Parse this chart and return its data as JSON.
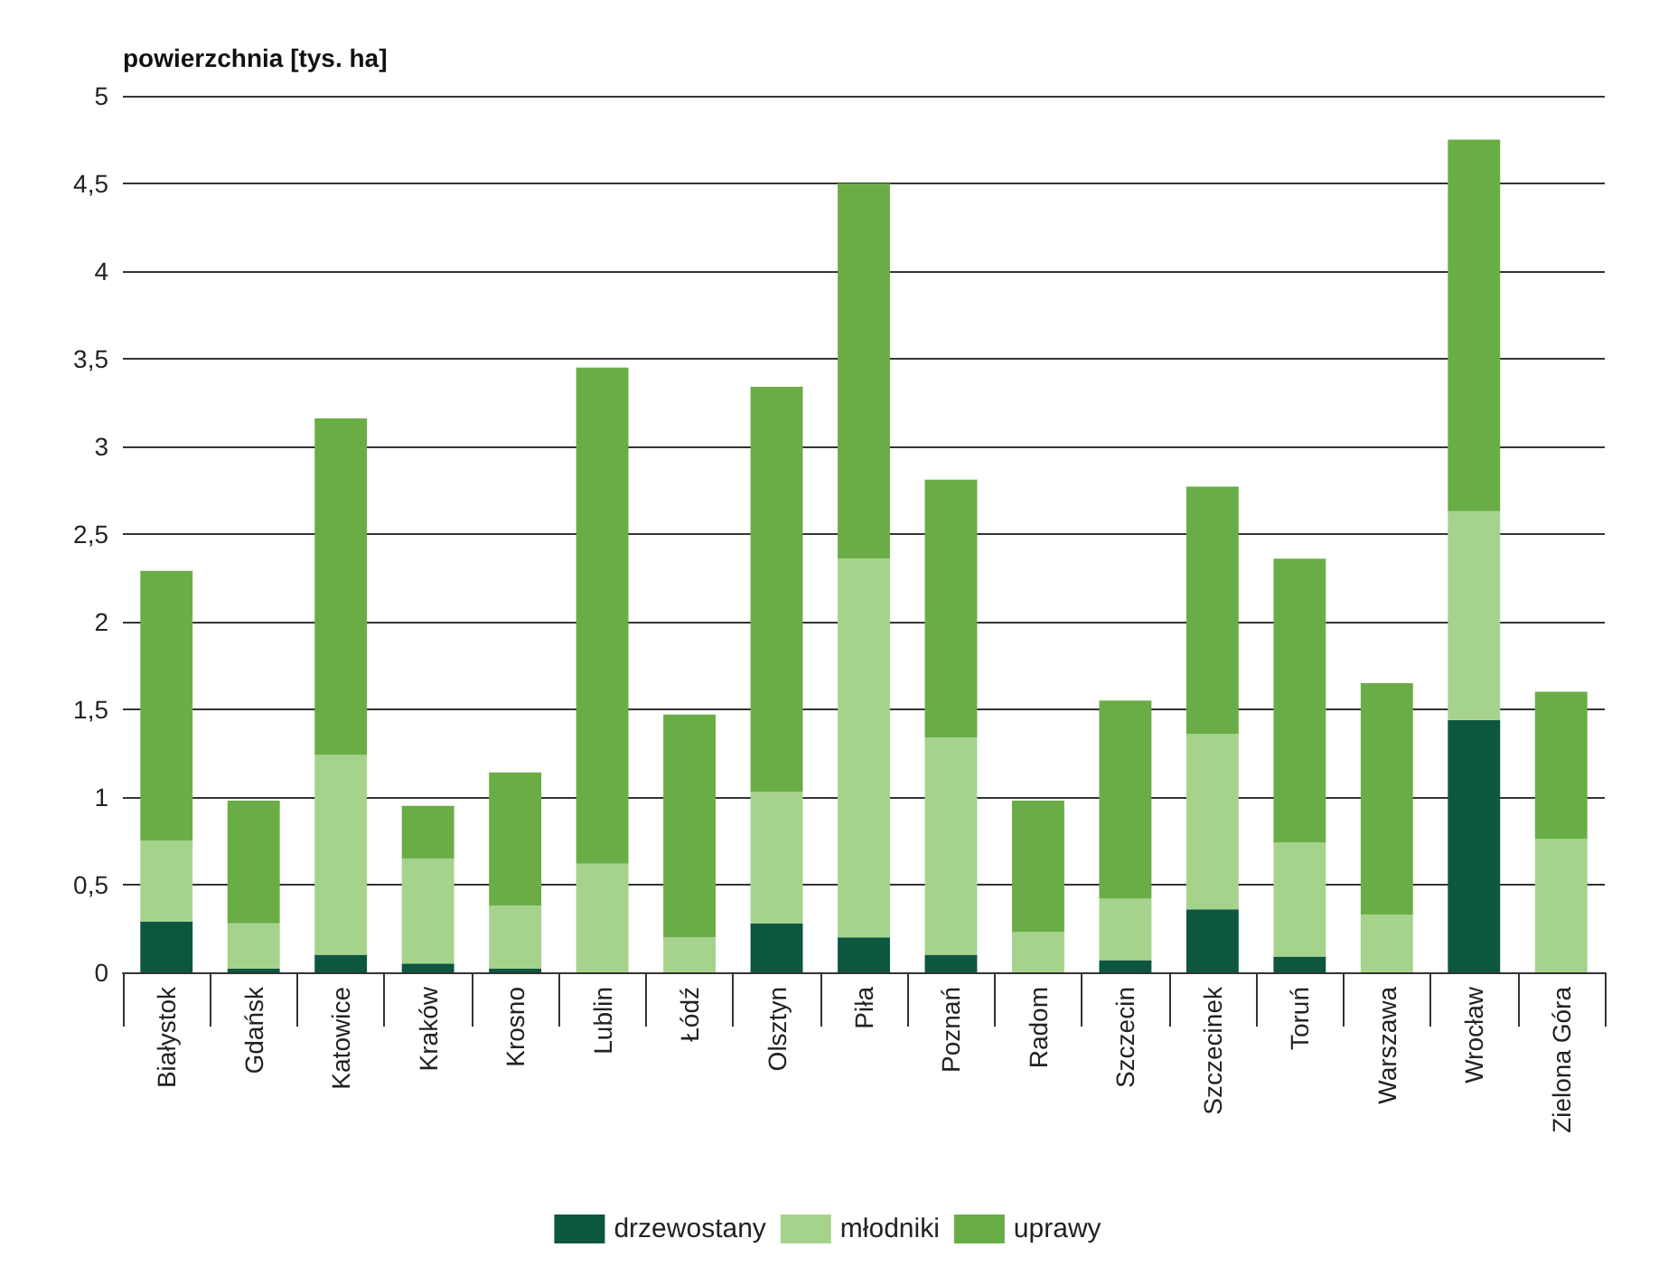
{
  "chart_data": {
    "type": "bar",
    "stacked": true,
    "ylabel": "powierzchnia [tys. ha]",
    "categories": [
      "Białystok",
      "Gdańsk",
      "Katowice",
      "Kraków",
      "Krosno",
      "Lublin",
      "Łódź",
      "Olsztyn",
      "Piła",
      "Poznań",
      "Radom",
      "Szczecin",
      "Szczecinek",
      "Toruń",
      "Warszawa",
      "Wrocław",
      "Zielona Góra"
    ],
    "series": [
      {
        "name": "drzewostany",
        "color": "#0d5640",
        "values": [
          0.29,
          0.02,
          0.1,
          0.05,
          0.02,
          0,
          0,
          0.28,
          0.2,
          0.1,
          0,
          0.07,
          0.36,
          0.09,
          0,
          1.44,
          0
        ]
      },
      {
        "name": "młodniki",
        "color": "#a6d38c",
        "values": [
          0.46,
          0.26,
          1.14,
          0.6,
          0.36,
          0.62,
          0.2,
          0.75,
          2.16,
          1.24,
          0.23,
          0.35,
          1.0,
          0.65,
          0.33,
          1.19,
          0.76
        ]
      },
      {
        "name": "uprawy",
        "color": "#6aad47",
        "values": [
          1.54,
          0.7,
          1.92,
          0.3,
          0.76,
          2.83,
          1.27,
          2.31,
          2.14,
          1.47,
          0.75,
          1.13,
          1.41,
          1.62,
          1.32,
          2.12,
          0.84
        ]
      }
    ],
    "ylim": [
      0,
      5
    ],
    "yticks": [
      0,
      {
        "value": 0.5,
        "label": "0,5"
      },
      1,
      {
        "value": 1.5,
        "label": "1,5"
      },
      2,
      {
        "value": 2.5,
        "label": "2,5"
      },
      3,
      {
        "value": 3.5,
        "label": "3,5"
      },
      4,
      {
        "value": 4.5,
        "label": "4,5"
      },
      5
    ],
    "grid": "y",
    "legend": "bottom"
  }
}
